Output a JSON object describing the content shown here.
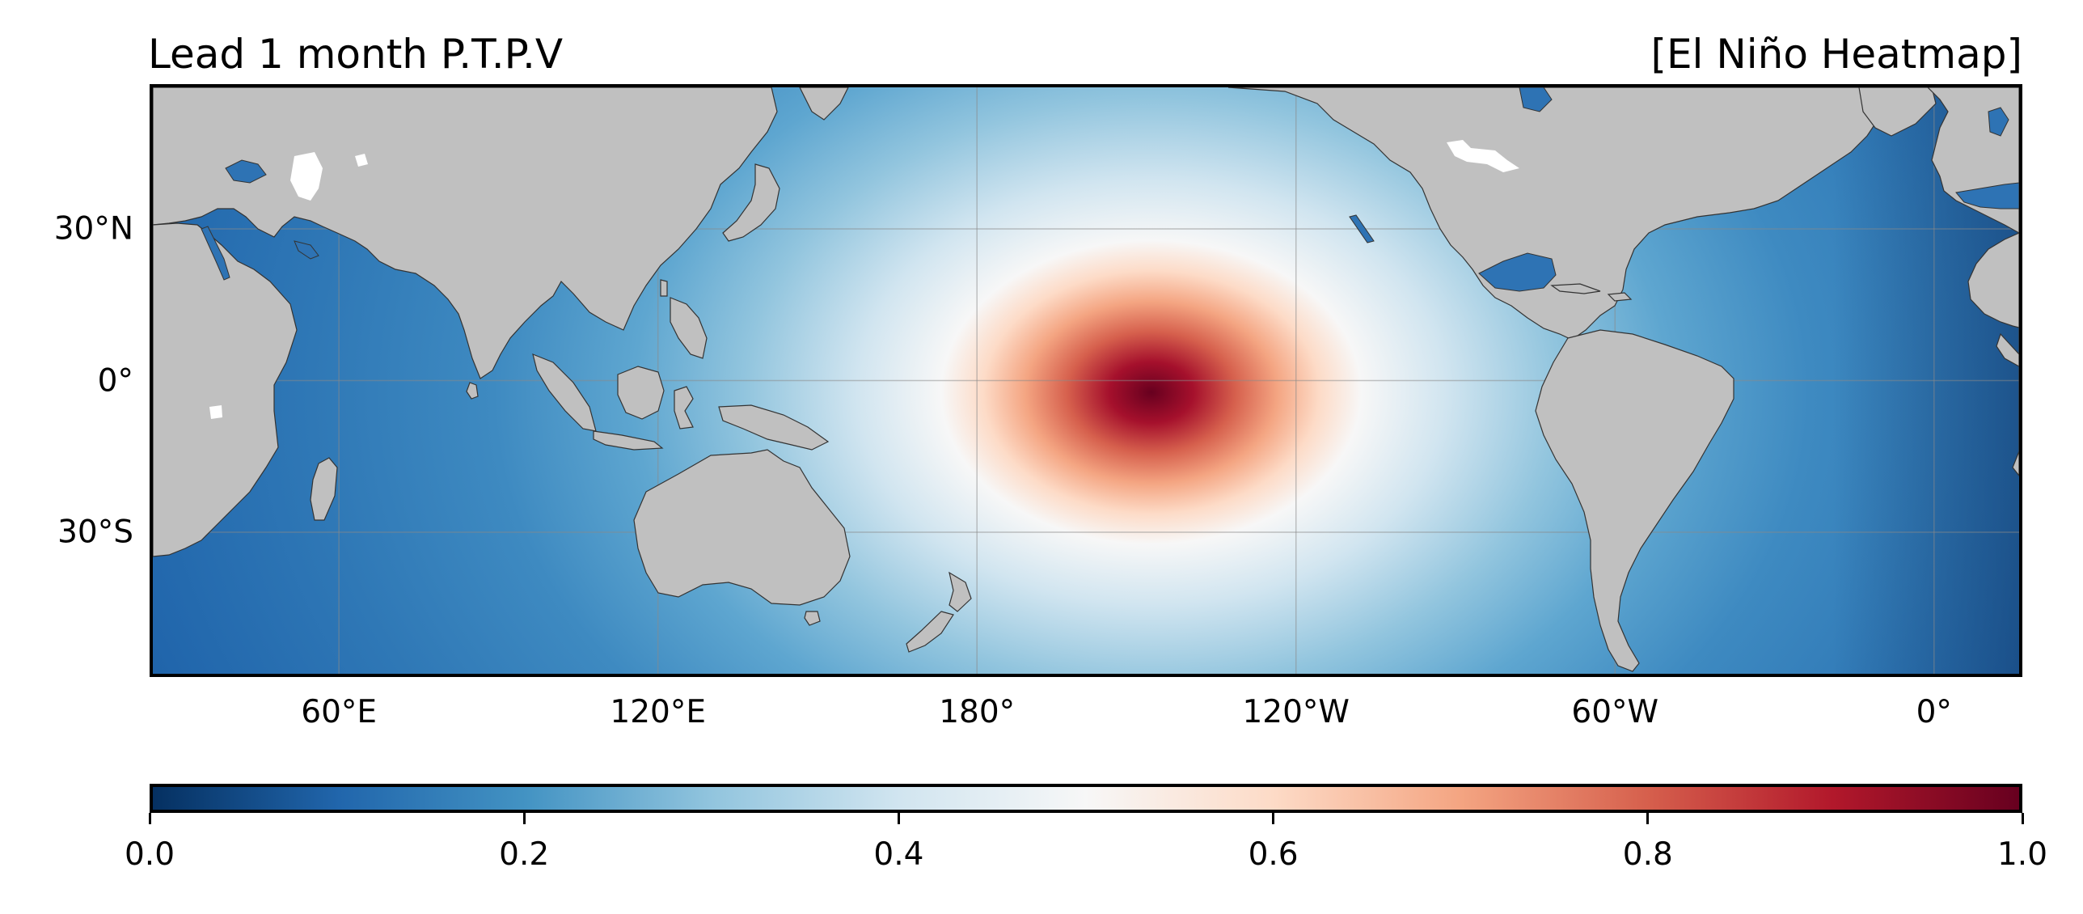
{
  "header": {
    "title_left": "Lead 1 month P.T.P.V",
    "title_right": "[El Niño Heatmap]"
  },
  "map": {
    "projection": "PlateCarree",
    "central_longitude": 180,
    "lon_extent": [
      25,
      16
    ],
    "lat_extent": [
      -58,
      58
    ],
    "gridlines": true,
    "land_color": "#c0c0c0",
    "lake_color": "#ffffff",
    "lon_ticks": [
      "60°E",
      "120°E",
      "180°",
      "120°W",
      "60°W",
      "0°"
    ],
    "lat_ticks": [
      "30°N",
      "0°",
      "30°S"
    ],
    "heat_peak": {
      "lon": -145,
      "lat": 0,
      "value": 1.0
    }
  },
  "colorbar": {
    "cmap": "RdBu_r",
    "range": [
      0.0,
      1.0
    ],
    "ticks": [
      "0.0",
      "0.2",
      "0.4",
      "0.6",
      "0.8",
      "1.0"
    ],
    "stops": [
      "#053061",
      "#2166ac",
      "#4393c3",
      "#92c5de",
      "#d1e5f0",
      "#f7f7f7",
      "#fddbc7",
      "#f4a582",
      "#d6604d",
      "#b2182b",
      "#67001f"
    ]
  }
}
